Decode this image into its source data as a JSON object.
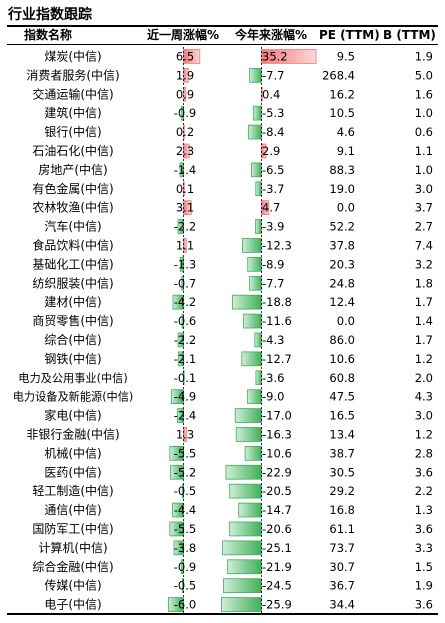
{
  "title": "行业指数跟踪",
  "colors": {
    "positive": "#f0797a",
    "positive_light": "#fbd8d8",
    "negative": "#3fae5a",
    "negative_light": "#cfeed6"
  },
  "chart_data": {
    "type": "table",
    "columns": [
      "指数名称",
      "近一周涨幅%",
      "今年来涨幅%",
      "PE (TTM)",
      "PB (TTM)"
    ],
    "header_labels": [
      "指数名称",
      "近一周涨幅%",
      "今年来涨幅%",
      "PE  (TTM)",
      "B  (TTM)"
    ],
    "rows": [
      {
        "name": "煤炭(中信)",
        "week": "6.5",
        "ytd": "35.2",
        "pe": "9.5",
        "pb": "1.9"
      },
      {
        "name": "消费者服务(中信)",
        "week": "1.9",
        "ytd": "-7.7",
        "pe": "268.4",
        "pb": "5.0"
      },
      {
        "name": "交通运输(中信)",
        "week": "0.9",
        "ytd": "0.4",
        "pe": "16.2",
        "pb": "1.6"
      },
      {
        "name": "建筑(中信)",
        "week": "-0.9",
        "ytd": "-5.3",
        "pe": "10.5",
        "pb": "1.0"
      },
      {
        "name": "银行(中信)",
        "week": "0.2",
        "ytd": "-8.4",
        "pe": "4.6",
        "pb": "0.6"
      },
      {
        "name": "石油石化(中信)",
        "week": "2.3",
        "ytd": "2.9",
        "pe": "9.1",
        "pb": "1.1"
      },
      {
        "name": "房地产(中信)",
        "week": "-1.4",
        "ytd": "-6.5",
        "pe": "88.3",
        "pb": "1.0"
      },
      {
        "name": "有色金属(中信)",
        "week": "0.1",
        "ytd": "-3.7",
        "pe": "19.0",
        "pb": "3.0"
      },
      {
        "name": "农林牧渔(中信)",
        "week": "3.1",
        "ytd": "4.7",
        "pe": "0.0",
        "pb": "3.7"
      },
      {
        "name": "汽车(中信)",
        "week": "-2.2",
        "ytd": "-3.9",
        "pe": "52.2",
        "pb": "2.7"
      },
      {
        "name": "食品饮料(中信)",
        "week": "1.1",
        "ytd": "-12.3",
        "pe": "37.8",
        "pb": "7.4"
      },
      {
        "name": "基础化工(中信)",
        "week": "-1.3",
        "ytd": "-8.9",
        "pe": "20.3",
        "pb": "3.2"
      },
      {
        "name": "纺织服装(中信)",
        "week": "-0.7",
        "ytd": "-7.7",
        "pe": "24.8",
        "pb": "1.8"
      },
      {
        "name": "建材(中信)",
        "week": "-4.2",
        "ytd": "-18.8",
        "pe": "12.4",
        "pb": "1.7"
      },
      {
        "name": "商贸零售(中信)",
        "week": "-0.6",
        "ytd": "-11.6",
        "pe": "0.0",
        "pb": "1.4"
      },
      {
        "name": "综合(中信)",
        "week": "-2.2",
        "ytd": "-4.3",
        "pe": "86.0",
        "pb": "1.7"
      },
      {
        "name": "钢铁(中信)",
        "week": "-2.1",
        "ytd": "-12.7",
        "pe": "10.6",
        "pb": "1.2"
      },
      {
        "name": "电力及公用事业(中信)",
        "week": "-0.1",
        "ytd": "-3.6",
        "pe": "60.8",
        "pb": "2.0"
      },
      {
        "name": "电力设备及新能源(中信)",
        "week": "-4.9",
        "ytd": "-9.0",
        "pe": "47.5",
        "pb": "4.3"
      },
      {
        "name": "家电(中信)",
        "week": "-2.4",
        "ytd": "-17.0",
        "pe": "16.5",
        "pb": "3.0"
      },
      {
        "name": "非银行金融(中信)",
        "week": "1.3",
        "ytd": "-16.3",
        "pe": "13.4",
        "pb": "1.2"
      },
      {
        "name": "机械(中信)",
        "week": "-5.5",
        "ytd": "-10.6",
        "pe": "38.7",
        "pb": "2.8"
      },
      {
        "name": "医药(中信)",
        "week": "-5.2",
        "ytd": "-22.9",
        "pe": "30.5",
        "pb": "3.6"
      },
      {
        "name": "轻工制造(中信)",
        "week": "-0.5",
        "ytd": "-20.5",
        "pe": "29.2",
        "pb": "2.2"
      },
      {
        "name": "通信(中信)",
        "week": "-4.4",
        "ytd": "-14.7",
        "pe": "16.8",
        "pb": "1.3"
      },
      {
        "name": "国防军工(中信)",
        "week": "-5.5",
        "ytd": "-20.6",
        "pe": "61.1",
        "pb": "3.6"
      },
      {
        "name": "计算机(中信)",
        "week": "-3.8",
        "ytd": "-25.1",
        "pe": "73.7",
        "pb": "3.3"
      },
      {
        "name": "综合金融(中信)",
        "week": "-0.9",
        "ytd": "-21.9",
        "pe": "30.7",
        "pb": "1.5"
      },
      {
        "name": "传媒(中信)",
        "week": "-0.5",
        "ytd": "-24.5",
        "pe": "36.7",
        "pb": "1.9"
      },
      {
        "name": "电子(中信)",
        "week": "-6.0",
        "ytd": "-25.9",
        "pe": "34.4",
        "pb": "3.6"
      }
    ]
  }
}
